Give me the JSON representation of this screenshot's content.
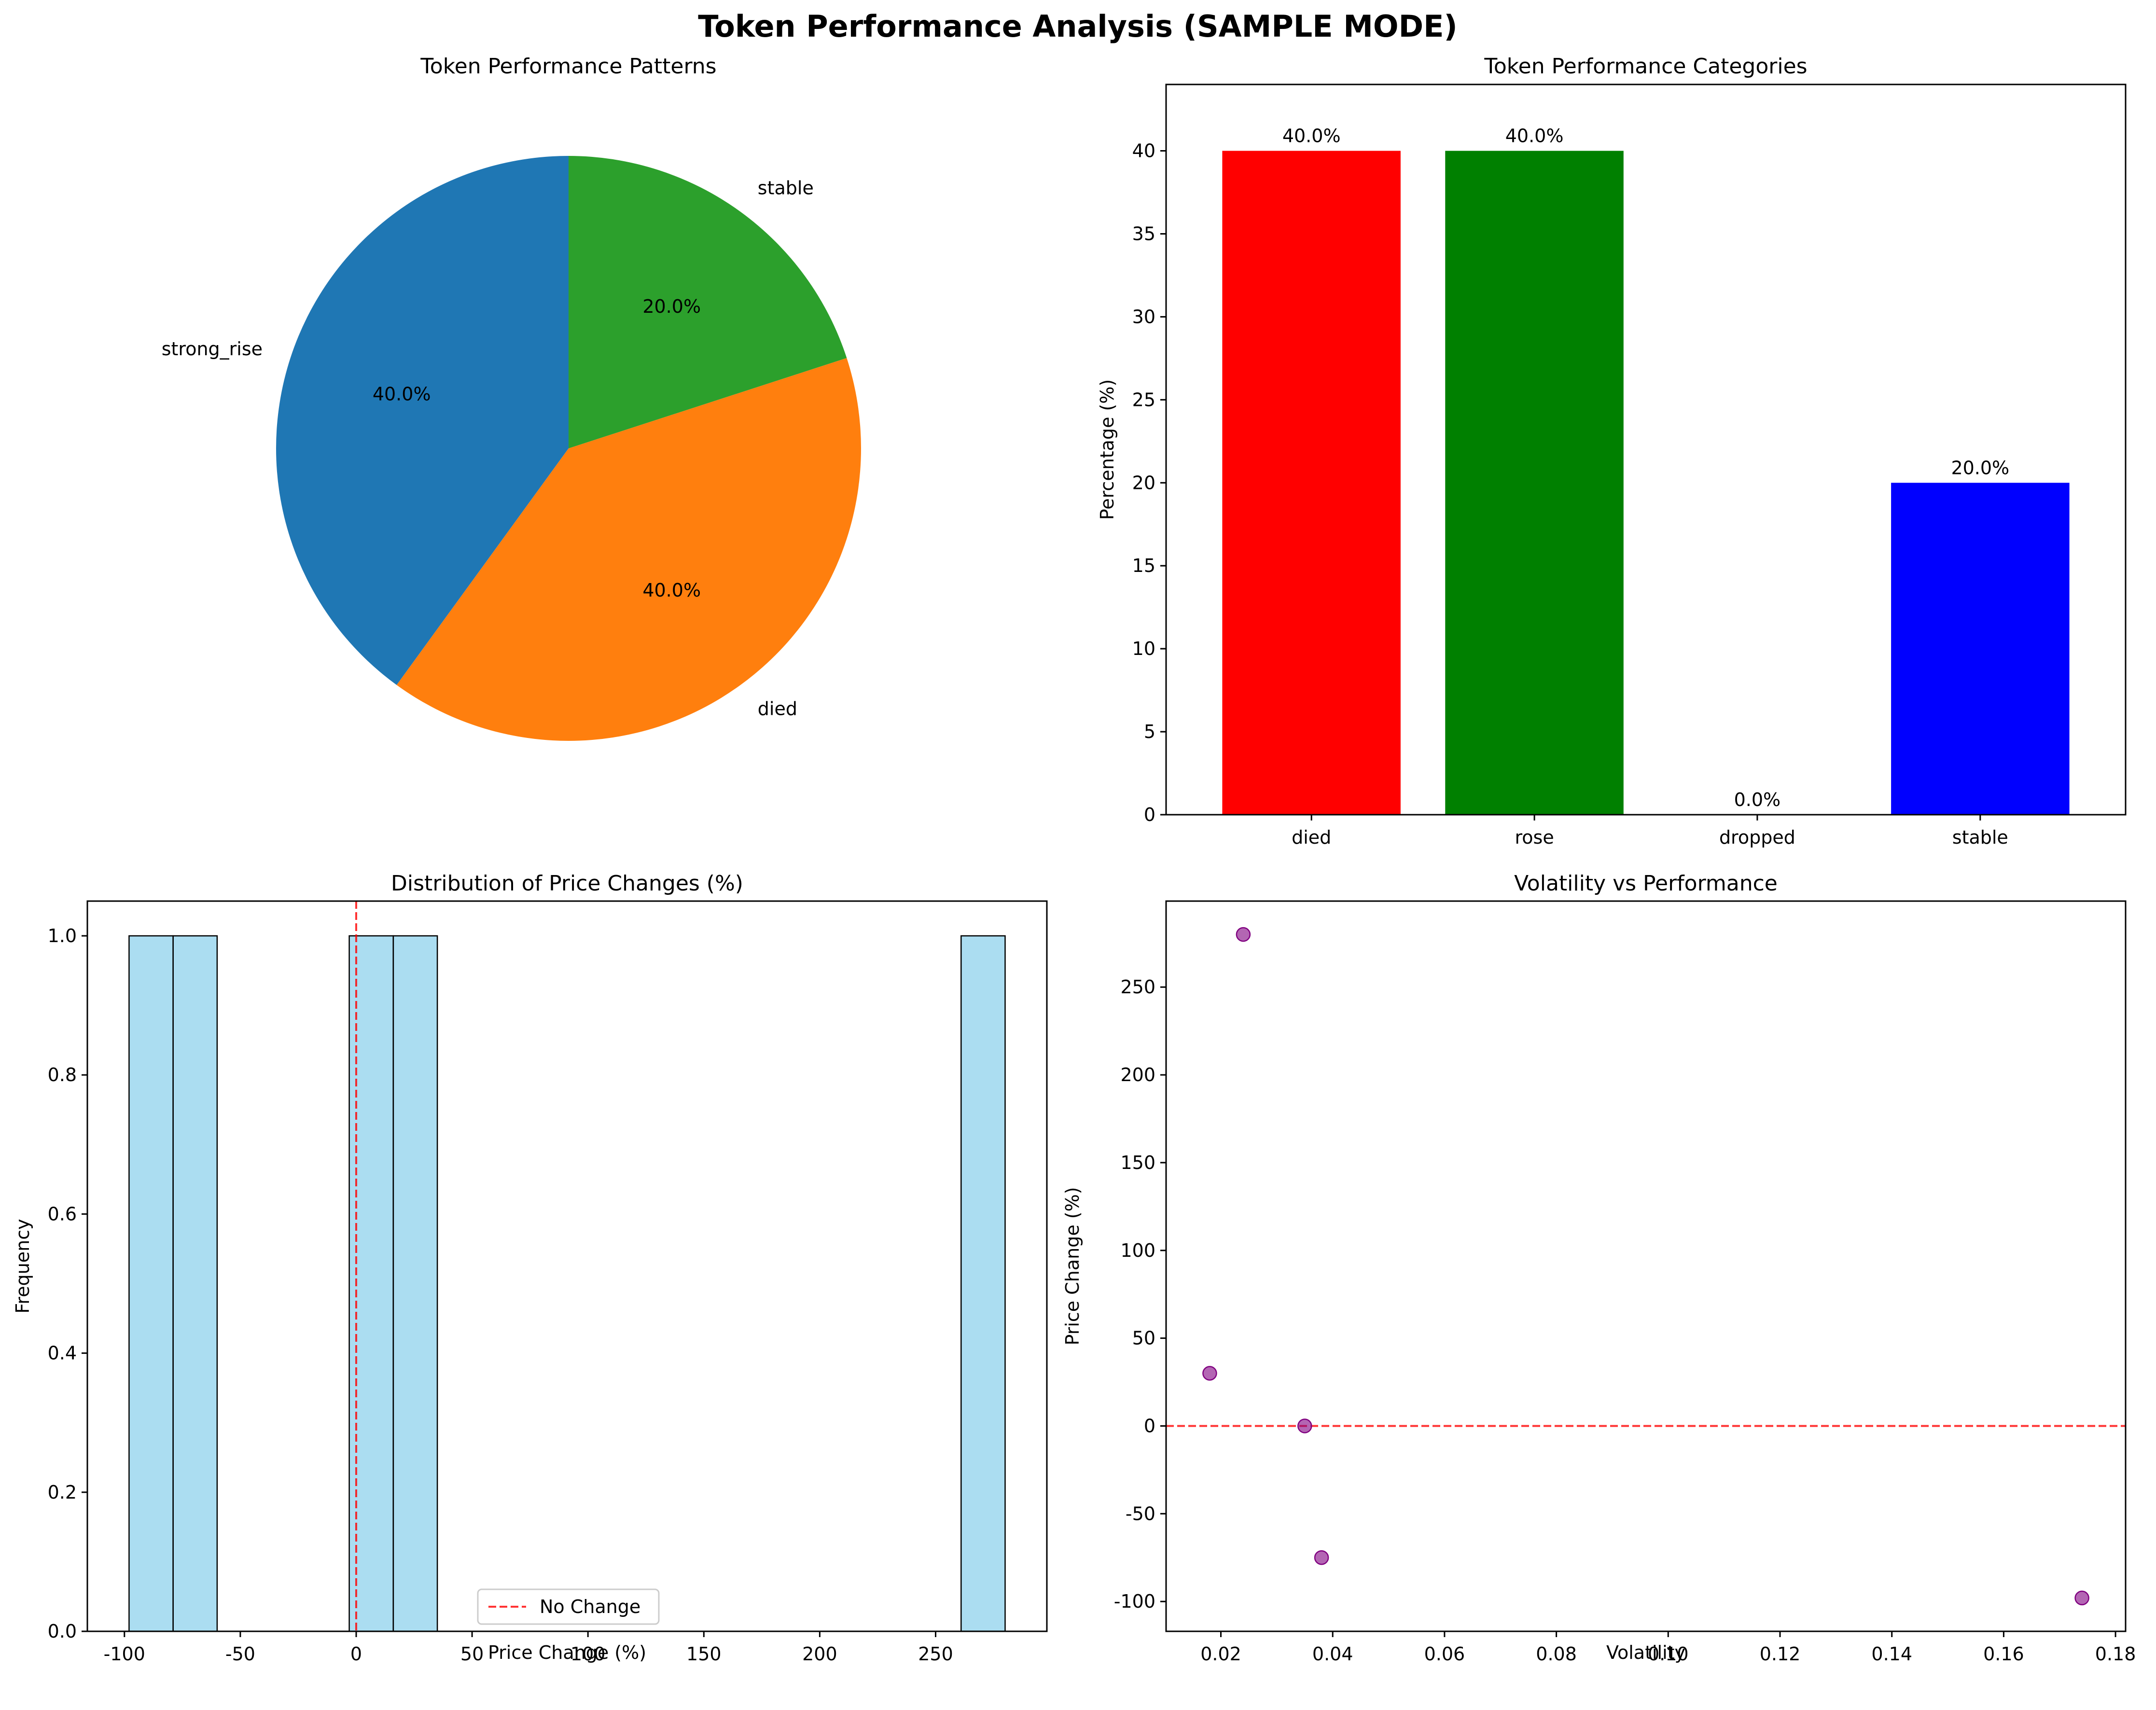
{
  "figure": {
    "suptitle": "Token Performance Analysis (SAMPLE MODE)"
  },
  "chart_data": [
    {
      "type": "pie",
      "title": "Token Performance Patterns",
      "labels": [
        "strong_rise",
        "died",
        "stable"
      ],
      "values": [
        40.0,
        40.0,
        20.0
      ],
      "pct_labels": [
        "40.0%",
        "40.0%",
        "20.0%"
      ],
      "colors": [
        "#1f77b4",
        "#ff7f0e",
        "#2ca02c"
      ],
      "start_angle_deg": 90
    },
    {
      "type": "bar",
      "title": "Token Performance Categories",
      "categories": [
        "died",
        "rose",
        "dropped",
        "stable"
      ],
      "values": [
        40.0,
        40.0,
        0.0,
        20.0
      ],
      "value_labels": [
        "40.0%",
        "40.0%",
        "0.0%",
        "20.0%"
      ],
      "colors": [
        "#ff0000",
        "#008000",
        "#ffa500",
        "#0000ff"
      ],
      "xlabel": "",
      "ylabel": "Percentage (%)",
      "ylim": [
        0,
        44
      ],
      "yticks": [
        0,
        5,
        10,
        15,
        20,
        25,
        30,
        35,
        40
      ]
    },
    {
      "type": "bar",
      "subtype": "histogram",
      "title": "Distribution of Price Changes (%)",
      "bin_edges": [
        -98,
        -79,
        -60,
        -41,
        -22,
        -3,
        16,
        35,
        54,
        73,
        92,
        111,
        130,
        149,
        168,
        187,
        206,
        225,
        244,
        261,
        280
      ],
      "counts": [
        1,
        1,
        0,
        0,
        0,
        1,
        1,
        0,
        0,
        0,
        0,
        0,
        0,
        0,
        0,
        0,
        0,
        0,
        0,
        1
      ],
      "bar_color": "#87ceeb",
      "edge_color": "#000000",
      "xlabel": "Price Change (%)",
      "ylabel": "Frequency",
      "xlim": [
        -116,
        298
      ],
      "ylim": [
        0,
        1.05
      ],
      "xticks": [
        -100,
        -50,
        0,
        50,
        100,
        150,
        200,
        250
      ],
      "yticks": [
        "0.0",
        "0.2",
        "0.4",
        "0.6",
        "0.8",
        "1.0"
      ],
      "reference_line": {
        "x": 0,
        "label": "No Change",
        "color": "#ff0000"
      },
      "legend_position": "lower-center"
    },
    {
      "type": "scatter",
      "title": "Volatility vs Performance",
      "points": [
        {
          "x": 0.024,
          "y": 280
        },
        {
          "x": 0.018,
          "y": 30
        },
        {
          "x": 0.035,
          "y": 0
        },
        {
          "x": 0.038,
          "y": -75
        },
        {
          "x": 0.174,
          "y": -98
        }
      ],
      "point_color": "#800080",
      "xlabel": "Volatility",
      "ylabel": "Price Change (%)",
      "xlim": [
        0.0102,
        0.1818
      ],
      "ylim": [
        -117,
        299
      ],
      "xticks": [
        "0.02",
        "0.04",
        "0.06",
        "0.08",
        "0.10",
        "0.12",
        "0.14",
        "0.16",
        "0.18"
      ],
      "yticks": [
        -100,
        -50,
        0,
        50,
        100,
        150,
        200,
        250
      ],
      "reference_line": {
        "y": 0,
        "color": "#ff0000"
      }
    }
  ]
}
